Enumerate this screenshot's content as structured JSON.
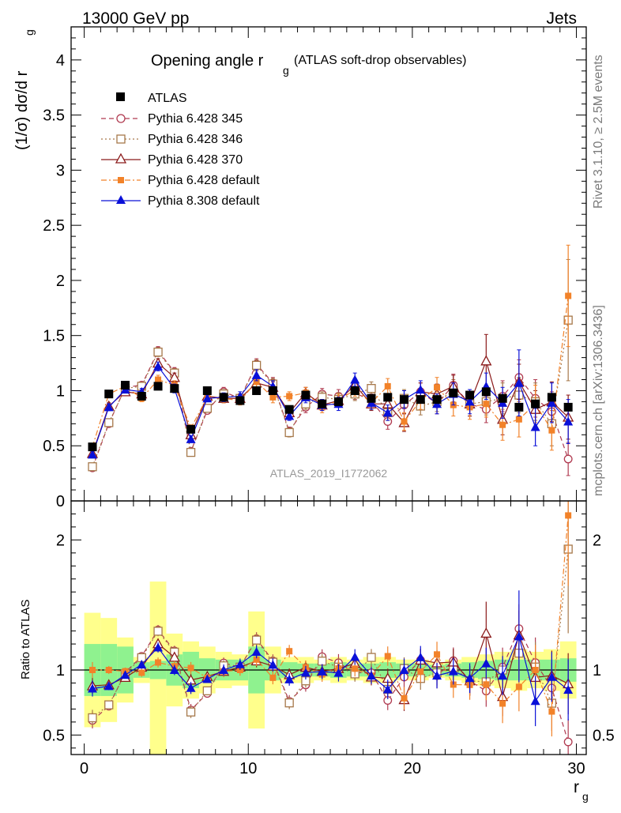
{
  "header": {
    "energy_label": "13000 GeV pp",
    "process_label": "Jets",
    "plot_title": "Opening angle r",
    "plot_title_sub": "g",
    "plot_title_note": "(ATLAS soft-drop observables)",
    "ylabel_main": "(1/σ) dσ/d r",
    "ylabel_main_sub": "g",
    "ylabel_ratio": "Ratio to ATLAS",
    "xlabel": "r",
    "xlabel_sub": "g",
    "watermark": "ATLAS_2019_I1772062",
    "side_rivet": "Rivet 3.1.10, ≥ 2.5M events",
    "side_mcplots": "mcplots.cern.ch [arXiv:1306.3436]"
  },
  "chart_data": {
    "type": "scatter",
    "x_centers": [
      0.5,
      1.5,
      2.5,
      3.5,
      4.5,
      5.5,
      6.5,
      7.5,
      8.5,
      9.5,
      10.5,
      11.5,
      12.5,
      13.5,
      14.5,
      15.5,
      16.5,
      17.5,
      18.5,
      19.5,
      20.5,
      21.5,
      22.5,
      23.5,
      24.5,
      25.5,
      26.5,
      27.5,
      28.5,
      29.5
    ],
    "xlim": [
      -0.8,
      30.6
    ],
    "xticks": [
      0,
      10,
      20,
      30
    ],
    "main_ylim": [
      0,
      4.3
    ],
    "main_yticks": [
      "0",
      "0.5",
      "1",
      "1.5",
      "2",
      "2.5",
      "3",
      "3.5",
      "4"
    ],
    "ratio_ylim": [
      0.35,
      2.3
    ],
    "ratio_yticks": [
      "0.5",
      "1",
      "2"
    ],
    "data": {
      "name": "ATLAS",
      "values": [
        0.49,
        0.97,
        1.05,
        0.95,
        1.04,
        1.02,
        0.65,
        1.0,
        0.94,
        0.91,
        1.0,
        1.0,
        0.83,
        0.96,
        0.88,
        0.9,
        1.0,
        0.93,
        0.94,
        0.92,
        0.92,
        0.92,
        0.98,
        0.96,
        0.99,
        0.93,
        0.85,
        0.88,
        0.94,
        0.85
      ]
    },
    "band_inner": [
      0.2,
      0.2,
      0.18,
      0.06,
      0.07,
      0.12,
      0.14,
      0.09,
      0.08,
      0.08,
      0.18,
      0.08,
      0.06,
      0.05,
      0.05,
      0.06,
      0.05,
      0.05,
      0.06,
      0.05,
      0.05,
      0.04,
      0.05,
      0.06,
      0.07,
      0.08,
      0.08,
      0.08,
      0.08,
      0.09
    ],
    "band_outer": [
      0.44,
      0.4,
      0.25,
      0.1,
      0.68,
      0.28,
      0.22,
      0.18,
      0.14,
      0.12,
      0.45,
      0.18,
      0.1,
      0.1,
      0.08,
      0.1,
      0.08,
      0.1,
      0.1,
      0.08,
      0.08,
      0.06,
      0.08,
      0.1,
      0.12,
      0.14,
      0.16,
      0.14,
      0.16,
      0.22
    ],
    "series": [
      {
        "name": "Pythia 6.428 345",
        "color": "#b03a50",
        "marker": "circle-open",
        "dash": "6,4",
        "values": [
          0.3,
          0.7,
          1.03,
          1.05,
          1.36,
          1.17,
          0.45,
          0.82,
          0.99,
          0.93,
          1.24,
          1.07,
          0.63,
          0.85,
          0.97,
          0.95,
          0.98,
          0.91,
          0.72,
          0.87,
          0.99,
          0.88,
          1.05,
          0.88,
          0.83,
          0.95,
          1.12,
          0.93,
          0.81,
          0.38
        ],
        "errors": [
          0.03,
          0.03,
          0.03,
          0.03,
          0.04,
          0.04,
          0.03,
          0.03,
          0.04,
          0.04,
          0.05,
          0.05,
          0.04,
          0.05,
          0.05,
          0.06,
          0.06,
          0.06,
          0.07,
          0.08,
          0.08,
          0.09,
          0.1,
          0.11,
          0.12,
          0.14,
          0.16,
          0.17,
          0.18,
          0.15
        ]
      },
      {
        "name": "Pythia 6.428 346",
        "color": "#a6784a",
        "marker": "square-open",
        "dash": "2,3",
        "values": [
          0.31,
          0.71,
          1.02,
          1.04,
          1.35,
          1.16,
          0.44,
          0.84,
          0.97,
          0.93,
          1.23,
          1.06,
          0.62,
          0.88,
          0.94,
          0.92,
          0.97,
          1.02,
          0.8,
          0.93,
          0.86,
          0.9,
          1.0,
          0.88,
          0.9,
          0.93,
          0.96,
          0.9,
          0.7,
          1.64
        ],
        "errors": [
          0.03,
          0.03,
          0.03,
          0.03,
          0.04,
          0.04,
          0.03,
          0.03,
          0.04,
          0.04,
          0.05,
          0.05,
          0.04,
          0.05,
          0.05,
          0.06,
          0.06,
          0.06,
          0.07,
          0.08,
          0.08,
          0.09,
          0.1,
          0.11,
          0.12,
          0.14,
          0.16,
          0.17,
          0.2,
          0.55
        ]
      },
      {
        "name": "Pythia 6.428 370",
        "color": "#8b1a1a",
        "marker": "triangle-open",
        "dash": "",
        "values": [
          0.43,
          0.86,
          0.99,
          0.97,
          1.25,
          1.12,
          0.6,
          0.95,
          0.93,
          0.93,
          1.07,
          1.03,
          0.8,
          0.98,
          0.87,
          0.91,
          1.05,
          0.88,
          0.88,
          0.71,
          0.99,
          0.97,
          1.04,
          0.88,
          1.27,
          0.74,
          1.08,
          0.83,
          0.9,
          0.76
        ],
        "errors": [
          0.03,
          0.03,
          0.03,
          0.03,
          0.04,
          0.04,
          0.03,
          0.03,
          0.04,
          0.04,
          0.05,
          0.05,
          0.04,
          0.05,
          0.05,
          0.06,
          0.06,
          0.06,
          0.07,
          0.08,
          0.08,
          0.09,
          0.1,
          0.11,
          0.24,
          0.14,
          0.16,
          0.17,
          0.18,
          0.2
        ]
      },
      {
        "name": "Pythia 6.428 default",
        "color": "#f28229",
        "marker": "square-filled",
        "dash": "7,3,2,3",
        "values": [
          0.49,
          0.97,
          1.04,
          0.93,
          1.1,
          1.05,
          0.66,
          0.94,
          0.93,
          0.91,
          1.08,
          0.94,
          0.95,
          0.98,
          0.85,
          0.91,
          1.01,
          0.89,
          1.04,
          0.72,
          0.91,
          1.03,
          0.87,
          0.85,
          0.88,
          0.69,
          0.74,
          0.88,
          0.64,
          1.86
        ],
        "errors": [
          0.03,
          0.03,
          0.03,
          0.03,
          0.04,
          0.04,
          0.03,
          0.03,
          0.04,
          0.04,
          0.05,
          0.05,
          0.04,
          0.05,
          0.05,
          0.06,
          0.06,
          0.06,
          0.07,
          0.08,
          0.08,
          0.09,
          0.1,
          0.11,
          0.12,
          0.14,
          0.16,
          0.17,
          0.18,
          0.46
        ]
      },
      {
        "name": "Pythia 8.308 default",
        "color": "#0a10d8",
        "marker": "triangle-filled",
        "dash": "",
        "values": [
          0.42,
          0.85,
          1.01,
          0.99,
          1.22,
          1.02,
          0.56,
          0.93,
          0.94,
          0.95,
          1.14,
          1.04,
          0.77,
          0.94,
          0.87,
          0.88,
          1.1,
          0.89,
          0.8,
          0.92,
          1.01,
          0.88,
          0.97,
          0.9,
          1.04,
          0.89,
          1.07,
          0.67,
          0.89,
          0.72
        ],
        "errors": [
          0.03,
          0.03,
          0.03,
          0.03,
          0.04,
          0.04,
          0.03,
          0.03,
          0.04,
          0.04,
          0.05,
          0.05,
          0.04,
          0.05,
          0.05,
          0.06,
          0.06,
          0.06,
          0.07,
          0.08,
          0.08,
          0.09,
          0.1,
          0.11,
          0.12,
          0.14,
          0.3,
          0.17,
          0.18,
          0.2
        ]
      }
    ],
    "colors": {
      "data_marker": "#000000",
      "band_inner": "#8ff28f",
      "band_outer": "#ffff8c",
      "watermark": "#999999",
      "side_text": "#7a7a7a"
    }
  }
}
